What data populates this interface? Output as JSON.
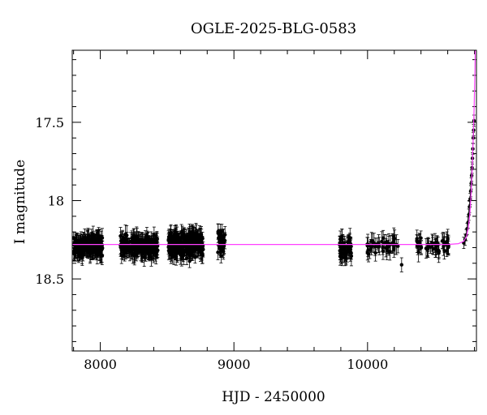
{
  "chart_data": {
    "type": "scatter",
    "title": "OGLE-2025-BLG-0583",
    "xlabel": "HJD - 2450000",
    "ylabel": "I magnitude",
    "xlim": [
      7790,
      10815
    ],
    "ylim": [
      18.96,
      17.04
    ],
    "y_inverted": true,
    "grid": false,
    "x_major_ticks": [
      8000,
      9000,
      10000
    ],
    "x_minor_step": 200,
    "y_major_ticks": [
      17.5,
      18,
      18.5
    ],
    "y_minor_step": 0.1,
    "x_tick_labels": [
      "8000",
      "9000",
      "10000"
    ],
    "y_tick_labels": [
      "17.5",
      "18",
      "18.5"
    ],
    "colors": {
      "points": "#000000",
      "model": "#ff40ff"
    },
    "baseline_mag": 18.28,
    "typical_error": 0.045,
    "observing_seasons": [
      {
        "x_start": 7800,
        "x_end": 8020,
        "mean_mag": 18.29,
        "scatter": 0.05,
        "n_points": 220
      },
      {
        "x_start": 8150,
        "x_end": 8430,
        "mean_mag": 18.29,
        "scatter": 0.05,
        "n_points": 230
      },
      {
        "x_start": 8510,
        "x_end": 8770,
        "mean_mag": 18.28,
        "scatter": 0.06,
        "n_points": 260
      },
      {
        "x_start": 8880,
        "x_end": 8935,
        "mean_mag": 18.27,
        "scatter": 0.06,
        "n_points": 45
      },
      {
        "x_start": 9790,
        "x_end": 9880,
        "mean_mag": 18.3,
        "scatter": 0.06,
        "n_points": 60
      },
      {
        "x_start": 9995,
        "x_end": 10230,
        "mean_mag": 18.29,
        "scatter": 0.04,
        "n_points": 45
      },
      {
        "x_start": 10360,
        "x_end": 10610,
        "mean_mag": 18.29,
        "scatter": 0.04,
        "n_points": 50
      }
    ],
    "outlier_points": [
      {
        "x": 10255,
        "y": 18.41
      }
    ],
    "rising_points": [
      {
        "x": 10720,
        "y": 18.27
      },
      {
        "x": 10730,
        "y": 18.25
      },
      {
        "x": 10738,
        "y": 18.22
      },
      {
        "x": 10745,
        "y": 18.18
      },
      {
        "x": 10752,
        "y": 18.14
      },
      {
        "x": 10758,
        "y": 18.09
      },
      {
        "x": 10763,
        "y": 18.04
      },
      {
        "x": 10768,
        "y": 17.99
      },
      {
        "x": 10772,
        "y": 17.94
      },
      {
        "x": 10776,
        "y": 17.89
      },
      {
        "x": 10779,
        "y": 17.84
      },
      {
        "x": 10782,
        "y": 17.79
      },
      {
        "x": 10785,
        "y": 17.73
      },
      {
        "x": 10788,
        "y": 17.67
      },
      {
        "x": 10791,
        "y": 17.6
      },
      {
        "x": 10794,
        "y": 17.55
      },
      {
        "x": 10797,
        "y": 17.49
      }
    ],
    "model_curve": [
      {
        "x": 7790,
        "y": 18.28
      },
      {
        "x": 10600,
        "y": 18.28
      },
      {
        "x": 10680,
        "y": 18.275
      },
      {
        "x": 10720,
        "y": 18.26
      },
      {
        "x": 10740,
        "y": 18.23
      },
      {
        "x": 10755,
        "y": 18.17
      },
      {
        "x": 10765,
        "y": 18.09
      },
      {
        "x": 10772,
        "y": 18.0
      },
      {
        "x": 10778,
        "y": 17.9
      },
      {
        "x": 10784,
        "y": 17.78
      },
      {
        "x": 10789,
        "y": 17.65
      },
      {
        "x": 10794,
        "y": 17.52
      },
      {
        "x": 10798,
        "y": 17.4
      },
      {
        "x": 10801,
        "y": 17.28
      },
      {
        "x": 10804,
        "y": 17.16
      },
      {
        "x": 10806,
        "y": 17.04
      }
    ]
  }
}
